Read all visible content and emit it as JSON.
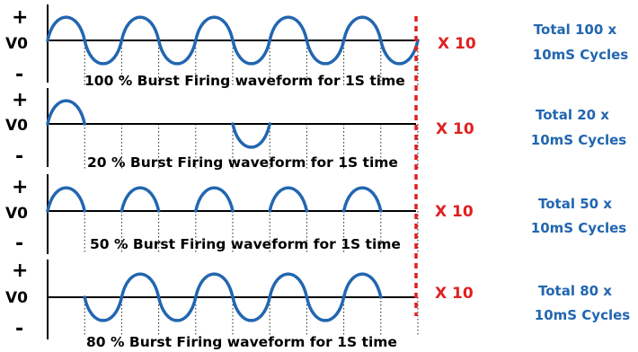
{
  "colors": {
    "wave": "#2266b0",
    "axis": "#000000",
    "marker": "#e02020",
    "total_text": "#2266b0",
    "multiplier_text": "#e02020"
  },
  "symbols": {
    "plus": "+",
    "minus": "-",
    "zero": "V0"
  },
  "panels": [
    {
      "caption": "100 % Burst Firing waveform for 1S time",
      "multiplier": "X 10",
      "total_line1": "Total 100 x",
      "total_line2": "10mS Cycles",
      "half_cycles": [
        1,
        -1,
        1,
        -1,
        1,
        -1,
        1,
        -1,
        1,
        -1
      ]
    },
    {
      "caption": "20 % Burst Firing waveform for 1S time",
      "multiplier": "X 10",
      "total_line1": "Total 20 x",
      "total_line2": "10mS Cycles",
      "half_cycles": [
        1,
        0,
        0,
        0,
        0,
        -1,
        0,
        0,
        0,
        0
      ]
    },
    {
      "caption": "50 % Burst Firing waveform for 1S time",
      "multiplier": "X 10",
      "total_line1": "Total 50 x",
      "total_line2": "10mS Cycles",
      "half_cycles": [
        1,
        0,
        1,
        0,
        1,
        0,
        1,
        0,
        1,
        0
      ]
    },
    {
      "caption": "80 % Burst Firing waveform for 1S time",
      "multiplier": "X 10",
      "total_line1": "Total 80 x",
      "total_line2": "10mS Cycles",
      "half_cycles": [
        0,
        -1,
        1,
        -1,
        1,
        -1,
        1,
        -1,
        1,
        0
      ]
    }
  ]
}
